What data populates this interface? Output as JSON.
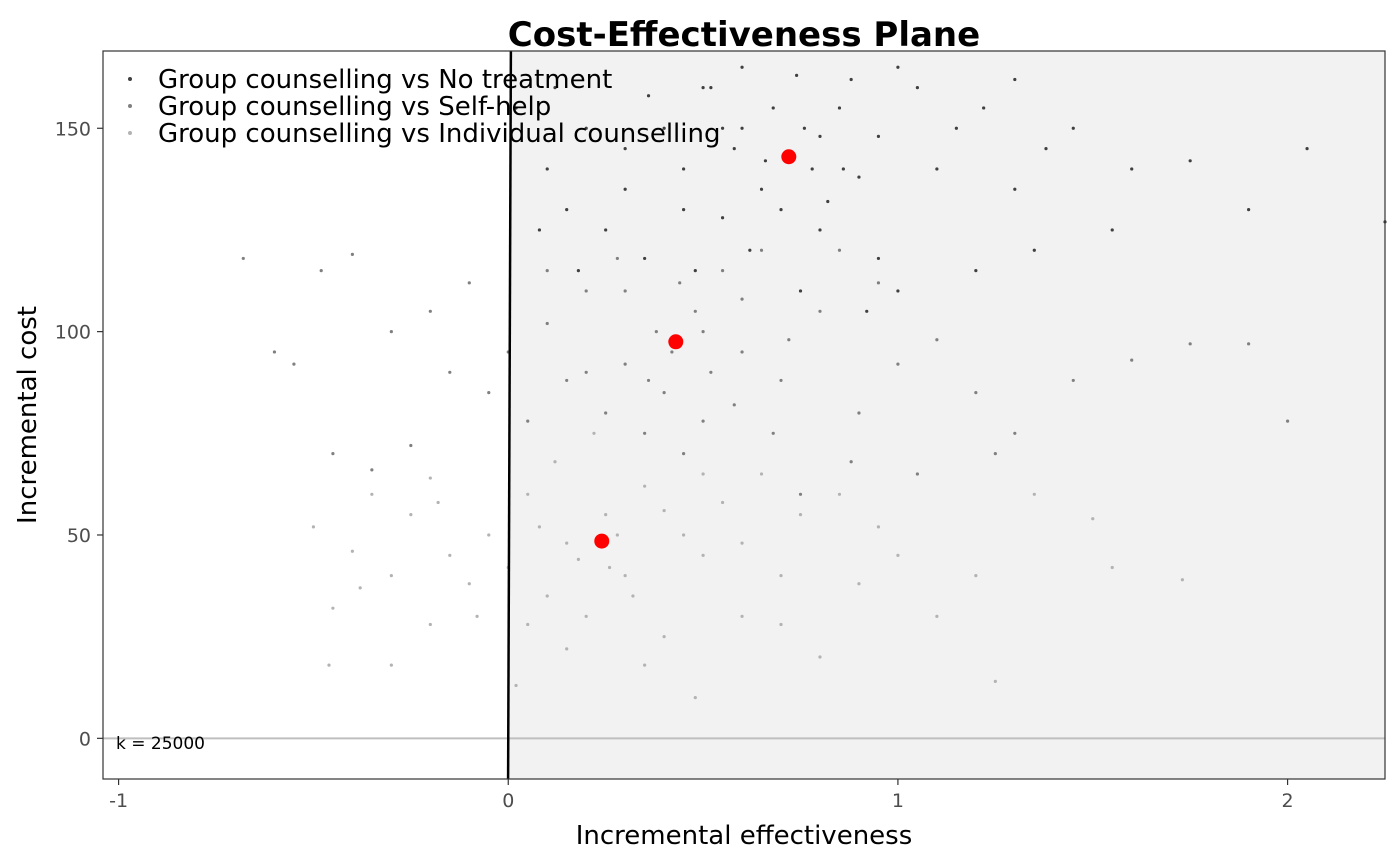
{
  "chart_data": {
    "type": "scatter",
    "title": "Cost-Effectiveness Plane",
    "xlabel": "Incremental effectiveness",
    "ylabel": "Incremental cost",
    "xlim": [
      -1.04,
      2.25
    ],
    "ylim": [
      -10,
      169
    ],
    "x_ticks": [
      -1,
      0,
      1,
      2
    ],
    "x_tick_labels": [
      "-1",
      "0",
      "1",
      "2"
    ],
    "y_ticks": [
      0,
      50,
      100,
      150
    ],
    "y_tick_labels": [
      "0",
      "50",
      "100",
      "150"
    ],
    "grid": false,
    "legend_position": "top-left",
    "willingness_to_pay": 25000,
    "annotation": "k = 25000",
    "colors": {
      "sustainability_area": "#f2f2f2",
      "wtp_line": "#000000",
      "zero_line": "#bfbfbf",
      "mean_point": "#ff0000"
    },
    "series": [
      {
        "name": "Group counselling vs No treatment",
        "color": "#404040",
        "mean": {
          "x": 0.72,
          "y": 143
        },
        "points": [
          [
            0.36,
            158
          ],
          [
            0.52,
            160
          ],
          [
            0.6,
            150
          ],
          [
            0.74,
            163
          ],
          [
            0.85,
            155
          ],
          [
            0.95,
            148
          ],
          [
            1.05,
            160
          ],
          [
            0.45,
            140
          ],
          [
            0.65,
            135
          ],
          [
            0.78,
            140
          ],
          [
            0.9,
            138
          ],
          [
            0.3,
            145
          ],
          [
            0.2,
            150
          ],
          [
            0.15,
            130
          ],
          [
            0.55,
            128
          ],
          [
            1.1,
            140
          ],
          [
            1.3,
            135
          ],
          [
            1.45,
            150
          ],
          [
            1.6,
            140
          ],
          [
            1.75,
            142
          ],
          [
            1.9,
            130
          ],
          [
            2.05,
            145
          ],
          [
            2.25,
            127
          ],
          [
            1.3,
            162
          ],
          [
            0.1,
            140
          ],
          [
            0.02,
            155
          ],
          [
            0.45,
            130
          ],
          [
            0.62,
            120
          ],
          [
            0.8,
            125
          ],
          [
            0.95,
            118
          ],
          [
            1.0,
            110
          ],
          [
            1.2,
            115
          ],
          [
            0.35,
            118
          ],
          [
            0.25,
            125
          ],
          [
            0.5,
            160
          ],
          [
            0.68,
            155
          ],
          [
            0.88,
            162
          ],
          [
            1.15,
            150
          ],
          [
            0.58,
            145
          ],
          [
            0.7,
            130
          ],
          [
            0.82,
            132
          ],
          [
            0.4,
            150
          ],
          [
            0.3,
            135
          ],
          [
            1.35,
            120
          ],
          [
            1.55,
            125
          ],
          [
            0.48,
            115
          ],
          [
            0.75,
            110
          ],
          [
            0.92,
            105
          ],
          [
            0.18,
            115
          ],
          [
            0.08,
            125
          ],
          [
            0.12,
            160
          ],
          [
            0.6,
            165
          ],
          [
            0.8,
            148
          ],
          [
            0.66,
            142
          ],
          [
            0.76,
            150
          ],
          [
            0.86,
            140
          ],
          [
            1.0,
            165
          ],
          [
            1.22,
            155
          ],
          [
            1.38,
            145
          ],
          [
            0.55,
            150
          ]
        ]
      },
      {
        "name": "Group counselling vs Self-help",
        "color": "#808080",
        "mean": {
          "x": 0.43,
          "y": 97.5
        },
        "points": [
          [
            -0.68,
            118
          ],
          [
            -0.55,
            92
          ],
          [
            -0.48,
            115
          ],
          [
            -0.4,
            119
          ],
          [
            -0.3,
            100
          ],
          [
            -0.2,
            105
          ],
          [
            -0.1,
            112
          ],
          [
            0.0,
            95
          ],
          [
            0.1,
            102
          ],
          [
            0.2,
            90
          ],
          [
            0.3,
            110
          ],
          [
            0.4,
            85
          ],
          [
            0.5,
            100
          ],
          [
            0.6,
            95
          ],
          [
            0.7,
            88
          ],
          [
            0.8,
            105
          ],
          [
            0.9,
            80
          ],
          [
            1.0,
            92
          ],
          [
            1.1,
            98
          ],
          [
            1.2,
            85
          ],
          [
            1.3,
            75
          ],
          [
            1.45,
            88
          ],
          [
            1.6,
            93
          ],
          [
            1.75,
            97
          ],
          [
            1.9,
            97
          ],
          [
            2.0,
            78
          ],
          [
            0.35,
            75
          ],
          [
            0.45,
            70
          ],
          [
            0.55,
            115
          ],
          [
            0.65,
            120
          ],
          [
            0.25,
            80
          ],
          [
            0.15,
            88
          ],
          [
            0.05,
            78
          ],
          [
            -0.05,
            85
          ],
          [
            -0.15,
            90
          ],
          [
            -0.25,
            72
          ],
          [
            -0.35,
            66
          ],
          [
            0.42,
            95
          ],
          [
            0.48,
            105
          ],
          [
            0.38,
            100
          ],
          [
            0.52,
            90
          ],
          [
            0.6,
            108
          ],
          [
            0.3,
            92
          ],
          [
            0.72,
            98
          ],
          [
            0.85,
            120
          ],
          [
            0.95,
            112
          ],
          [
            1.05,
            65
          ],
          [
            1.25,
            70
          ],
          [
            0.1,
            115
          ],
          [
            0.2,
            110
          ],
          [
            0.28,
            118
          ],
          [
            0.68,
            75
          ],
          [
            0.75,
            60
          ],
          [
            0.88,
            68
          ],
          [
            -0.45,
            70
          ],
          [
            -0.6,
            95
          ],
          [
            0.58,
            82
          ],
          [
            0.44,
            112
          ],
          [
            0.36,
            88
          ],
          [
            0.5,
            78
          ]
        ]
      },
      {
        "name": "Group counselling vs Individual counselling",
        "color": "#b3b3b3",
        "mean": {
          "x": 0.24,
          "y": 48.5
        },
        "points": [
          [
            -0.5,
            52
          ],
          [
            -0.45,
            32
          ],
          [
            -0.4,
            46
          ],
          [
            -0.35,
            60
          ],
          [
            -0.3,
            40
          ],
          [
            -0.25,
            55
          ],
          [
            -0.2,
            28
          ],
          [
            -0.15,
            45
          ],
          [
            -0.1,
            38
          ],
          [
            -0.05,
            50
          ],
          [
            0.0,
            42
          ],
          [
            0.05,
            60
          ],
          [
            0.1,
            35
          ],
          [
            0.15,
            48
          ],
          [
            0.2,
            30
          ],
          [
            0.25,
            55
          ],
          [
            0.3,
            40
          ],
          [
            0.35,
            62
          ],
          [
            0.4,
            25
          ],
          [
            0.45,
            50
          ],
          [
            0.5,
            45
          ],
          [
            0.55,
            58
          ],
          [
            0.6,
            30
          ],
          [
            0.65,
            65
          ],
          [
            0.7,
            40
          ],
          [
            0.75,
            55
          ],
          [
            0.8,
            20
          ],
          [
            0.85,
            60
          ],
          [
            0.9,
            38
          ],
          [
            1.0,
            45
          ],
          [
            1.1,
            30
          ],
          [
            1.2,
            40
          ],
          [
            1.25,
            14
          ],
          [
            1.35,
            60
          ],
          [
            1.5,
            54
          ],
          [
            1.55,
            42
          ],
          [
            1.73,
            39
          ],
          [
            0.02,
            13
          ],
          [
            0.48,
            10
          ],
          [
            -0.3,
            18
          ],
          [
            -0.46,
            18
          ],
          [
            0.12,
            68
          ],
          [
            0.22,
            75
          ],
          [
            -0.2,
            64
          ],
          [
            0.08,
            52
          ],
          [
            0.18,
            44
          ],
          [
            0.28,
            50
          ],
          [
            0.32,
            35
          ],
          [
            -0.08,
            30
          ],
          [
            -0.18,
            58
          ],
          [
            0.4,
            56
          ],
          [
            0.6,
            48
          ],
          [
            0.7,
            28
          ],
          [
            0.5,
            65
          ],
          [
            0.15,
            22
          ],
          [
            0.05,
            28
          ],
          [
            0.35,
            18
          ],
          [
            0.95,
            52
          ],
          [
            -0.38,
            37
          ],
          [
            0.26,
            42
          ]
        ]
      }
    ]
  }
}
